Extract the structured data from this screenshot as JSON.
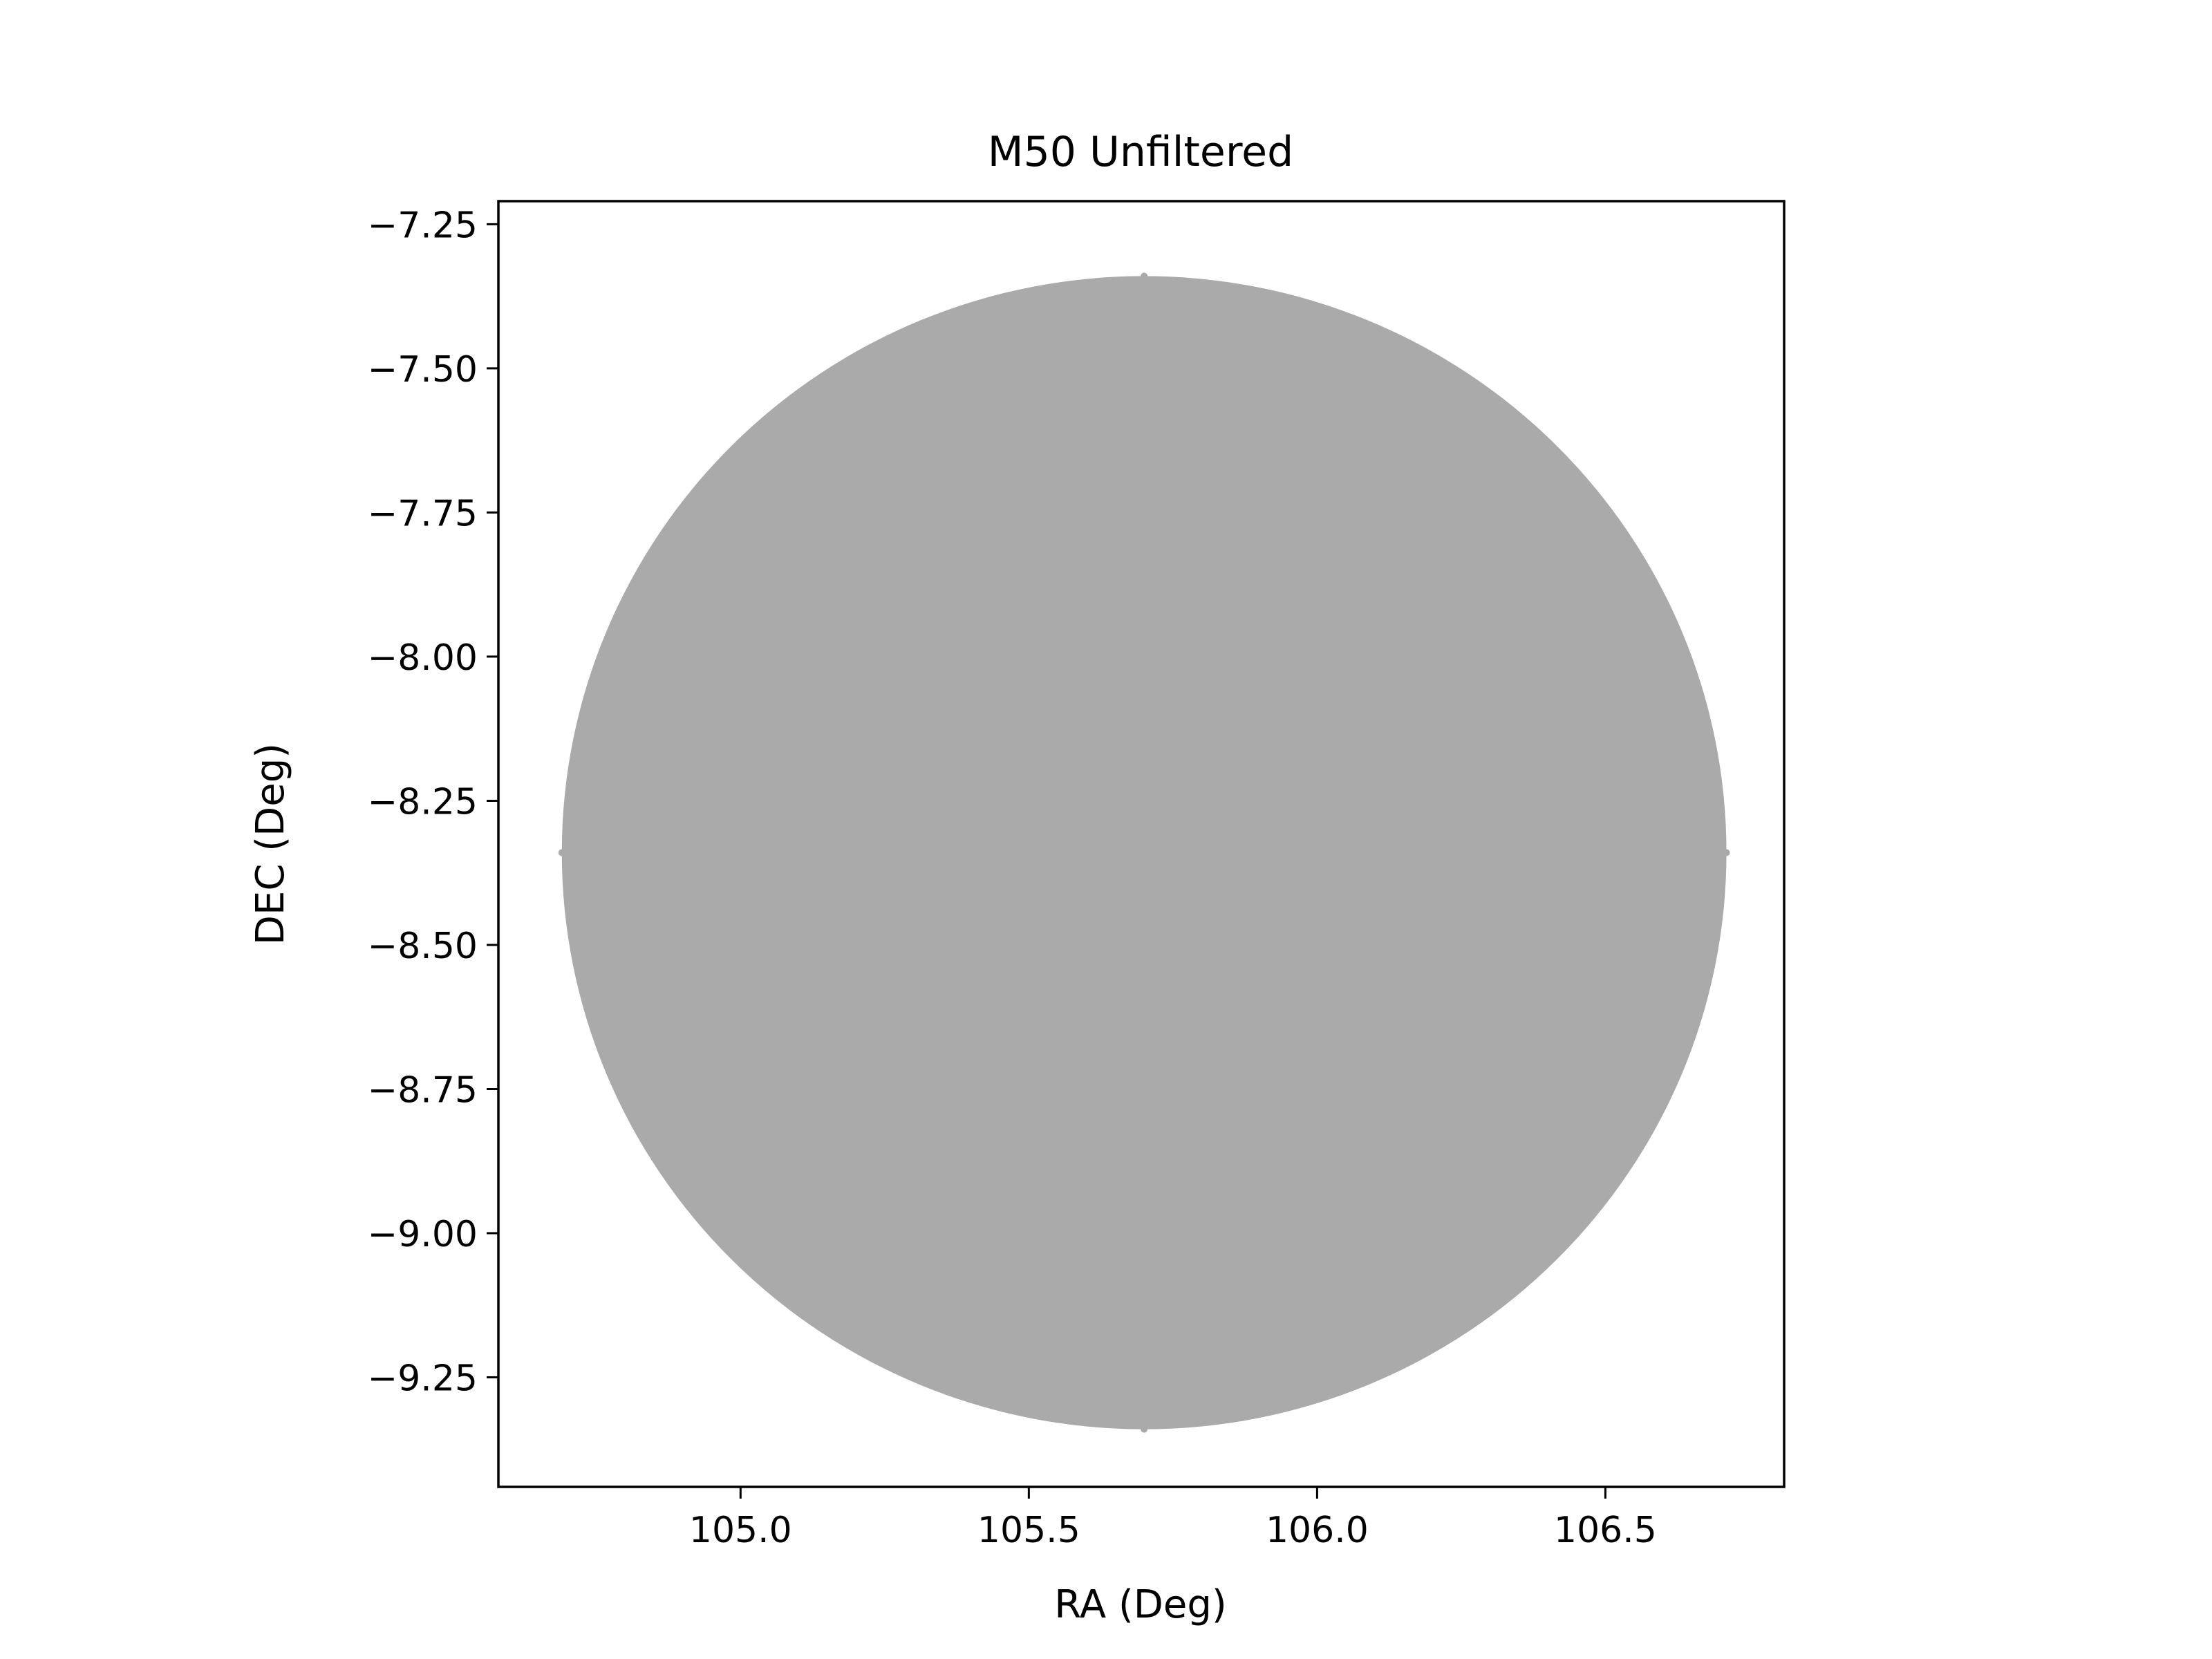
{
  "chart_data": {
    "type": "scatter",
    "title": "M50 Unfiltered",
    "xlabel": "RA (Deg)",
    "ylabel": "DEC (Deg)",
    "xlim": [
      104.58,
      106.81
    ],
    "ylim": [
      -9.44,
      -7.21
    ],
    "xticks": [
      105.0,
      105.5,
      106.0,
      106.5
    ],
    "xtick_labels": [
      "105.0",
      "105.5",
      "106.0",
      "106.5"
    ],
    "yticks": [
      -7.25,
      -7.5,
      -7.75,
      -8.0,
      -8.25,
      -8.5,
      -8.75,
      -9.0,
      -9.25
    ],
    "ytick_labels": [
      "−7.25",
      "−7.50",
      "−7.75",
      "−8.00",
      "−8.25",
      "−8.50",
      "−8.75",
      "−9.00",
      "−9.25"
    ],
    "grid": false,
    "series": [
      {
        "color": "#aaaaaa",
        "region": {
          "shape": "disk",
          "center": {
            "ra": 105.7,
            "dec": -8.34
          },
          "radius_ra": 1.01,
          "radius_dec": 1.0
        },
        "points": [
          {
            "ra": 105.7,
            "dec": -7.34
          },
          {
            "ra": 105.7,
            "dec": -9.34
          },
          {
            "ra": 104.69,
            "dec": -8.34
          },
          {
            "ra": 106.71,
            "dec": -8.34
          }
        ]
      }
    ]
  }
}
